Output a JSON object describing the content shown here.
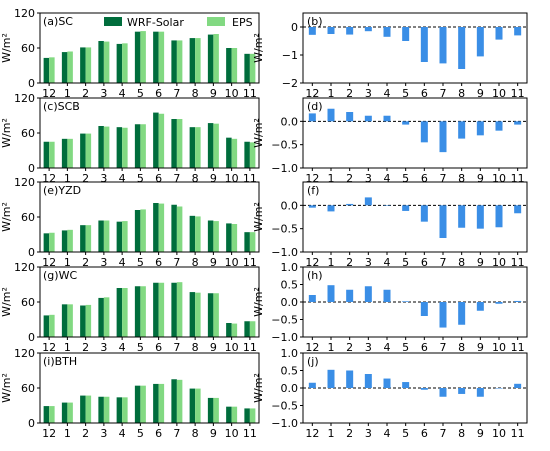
{
  "chart_data": {
    "type": "bar",
    "categories": [
      "12",
      "1",
      "2",
      "3",
      "4",
      "5",
      "6",
      "7",
      "8",
      "9",
      "10",
      "11"
    ],
    "legend": {
      "position": "top",
      "entries": [
        "WRF-Solar",
        "EPS"
      ]
    },
    "colors": {
      "wrf": "#006d3c",
      "eps": "#82d982",
      "diff": "#3a8ee6"
    },
    "left_panels": [
      {
        "label": "(a)SC",
        "ylabel": "W/m²",
        "ylim": [
          0,
          120
        ],
        "yticks": [
          "0",
          "60",
          "120"
        ],
        "series": [
          {
            "name": "WRF-Solar",
            "values": [
              43,
              53,
              61,
              72,
              67,
              88,
              88,
              73,
              77,
              83,
              60,
              50
            ]
          },
          {
            "name": "EPS",
            "values": [
              44,
              54,
              61,
              71,
              68,
              89,
              88,
              73,
              77,
              84,
              60,
              50
            ]
          }
        ]
      },
      {
        "label": "(c)SCB",
        "ylabel": "W/m²",
        "ylim": [
          0,
          120
        ],
        "yticks": [
          "0",
          "60",
          "120"
        ],
        "series": [
          {
            "name": "WRF-Solar",
            "values": [
              45,
              50,
              59,
              72,
              70,
              75,
              95,
              84,
              70,
              77,
              52,
              45
            ]
          },
          {
            "name": "EPS",
            "values": [
              45,
              50,
              59,
              71,
              69,
              75,
              93,
              84,
              70,
              76,
              50,
              44
            ]
          }
        ]
      },
      {
        "label": "(e)YZD",
        "ylabel": "W/m²",
        "ylim": [
          0,
          120
        ],
        "yticks": [
          "0",
          "60",
          "120"
        ],
        "series": [
          {
            "name": "WRF-Solar",
            "values": [
              32,
              37,
              46,
              54,
              52,
              72,
              84,
              81,
              62,
              54,
              49,
              34
            ]
          },
          {
            "name": "EPS",
            "values": [
              33,
              38,
              46,
              54,
              53,
              73,
              83,
              78,
              61,
              53,
              48,
              34
            ]
          }
        ]
      },
      {
        "label": "(g)WC",
        "ylabel": "W/m²",
        "ylim": [
          0,
          120
        ],
        "yticks": [
          "0",
          "60",
          "120"
        ],
        "series": [
          {
            "name": "WRF-Solar",
            "values": [
              37,
              56,
              54,
              67,
              84,
              87,
              93,
              93,
              77,
              75,
              24,
              27
            ]
          },
          {
            "name": "EPS",
            "values": [
              38,
              56,
              55,
              68,
              84,
              87,
              93,
              94,
              76,
              75,
              23,
              27
            ]
          }
        ]
      },
      {
        "label": "(i)BTH",
        "ylabel": "W/m²",
        "ylim": [
          0,
          120
        ],
        "yticks": [
          "0",
          "60",
          "120"
        ],
        "series": [
          {
            "name": "WRF-Solar",
            "values": [
              29,
              35,
              47,
              45,
              44,
              64,
              67,
              75,
              59,
              43,
              28,
              25
            ]
          },
          {
            "name": "EPS",
            "values": [
              29,
              35,
              47,
              45,
              44,
              64,
              67,
              74,
              59,
              43,
              28,
              25
            ]
          }
        ]
      }
    ],
    "right_panels": [
      {
        "label": "(b)",
        "ylabel": "W/m²",
        "ylim": [
          -2,
          0.5
        ],
        "yticks": [
          -2,
          -1,
          0
        ],
        "yticklabels": [
          "−2",
          "−1",
          "0"
        ],
        "values": [
          -0.28,
          -0.25,
          -0.27,
          -0.15,
          -0.35,
          -0.5,
          -1.25,
          -1.3,
          -1.5,
          -1.05,
          -0.45,
          -0.3
        ]
      },
      {
        "label": "(d)",
        "ylabel": "W/m²",
        "ylim": [
          -1.0,
          0.5
        ],
        "yticks": [
          -1.0,
          -0.5,
          0.0
        ],
        "yticklabels": [
          "−1.0",
          "−0.5",
          "0.0"
        ],
        "values": [
          0.17,
          0.27,
          0.2,
          0.12,
          0.12,
          -0.07,
          -0.45,
          -0.66,
          -0.37,
          -0.3,
          -0.2,
          -0.07
        ]
      },
      {
        "label": "(f)",
        "ylabel": "W/m²",
        "ylim": [
          -1.0,
          0.5
        ],
        "yticks": [
          -1.0,
          -0.5,
          0.0
        ],
        "yticklabels": [
          "−1.0",
          "−0.5",
          "0.0"
        ],
        "values": [
          -0.05,
          -0.13,
          0.03,
          0.17,
          0.0,
          -0.12,
          -0.35,
          -0.7,
          -0.48,
          -0.5,
          -0.47,
          -0.17
        ]
      },
      {
        "label": "(h)",
        "ylabel": "W/m²",
        "ylim": [
          -1.0,
          1.0
        ],
        "yticks": [
          -1.0,
          -0.5,
          0.0,
          0.5,
          1.0
        ],
        "yticklabels": [
          "−1.0",
          "−0.5",
          "0.0",
          "0.5",
          "1.0"
        ],
        "values": [
          0.2,
          0.48,
          0.35,
          0.45,
          0.35,
          0.02,
          -0.4,
          -0.73,
          -0.65,
          -0.25,
          -0.05,
          0.03
        ]
      },
      {
        "label": "(j)",
        "ylabel": "W/m²",
        "ylim": [
          -1.0,
          1.0
        ],
        "yticks": [
          -1.0,
          -0.5,
          0.0,
          0.5,
          1.0
        ],
        "yticklabels": [
          "−1.0",
          "−0.5",
          "0.0",
          "0.5",
          "1.0"
        ],
        "values": [
          0.15,
          0.52,
          0.5,
          0.4,
          0.27,
          0.17,
          -0.05,
          -0.25,
          -0.17,
          -0.25,
          0.0,
          0.12
        ]
      }
    ]
  }
}
